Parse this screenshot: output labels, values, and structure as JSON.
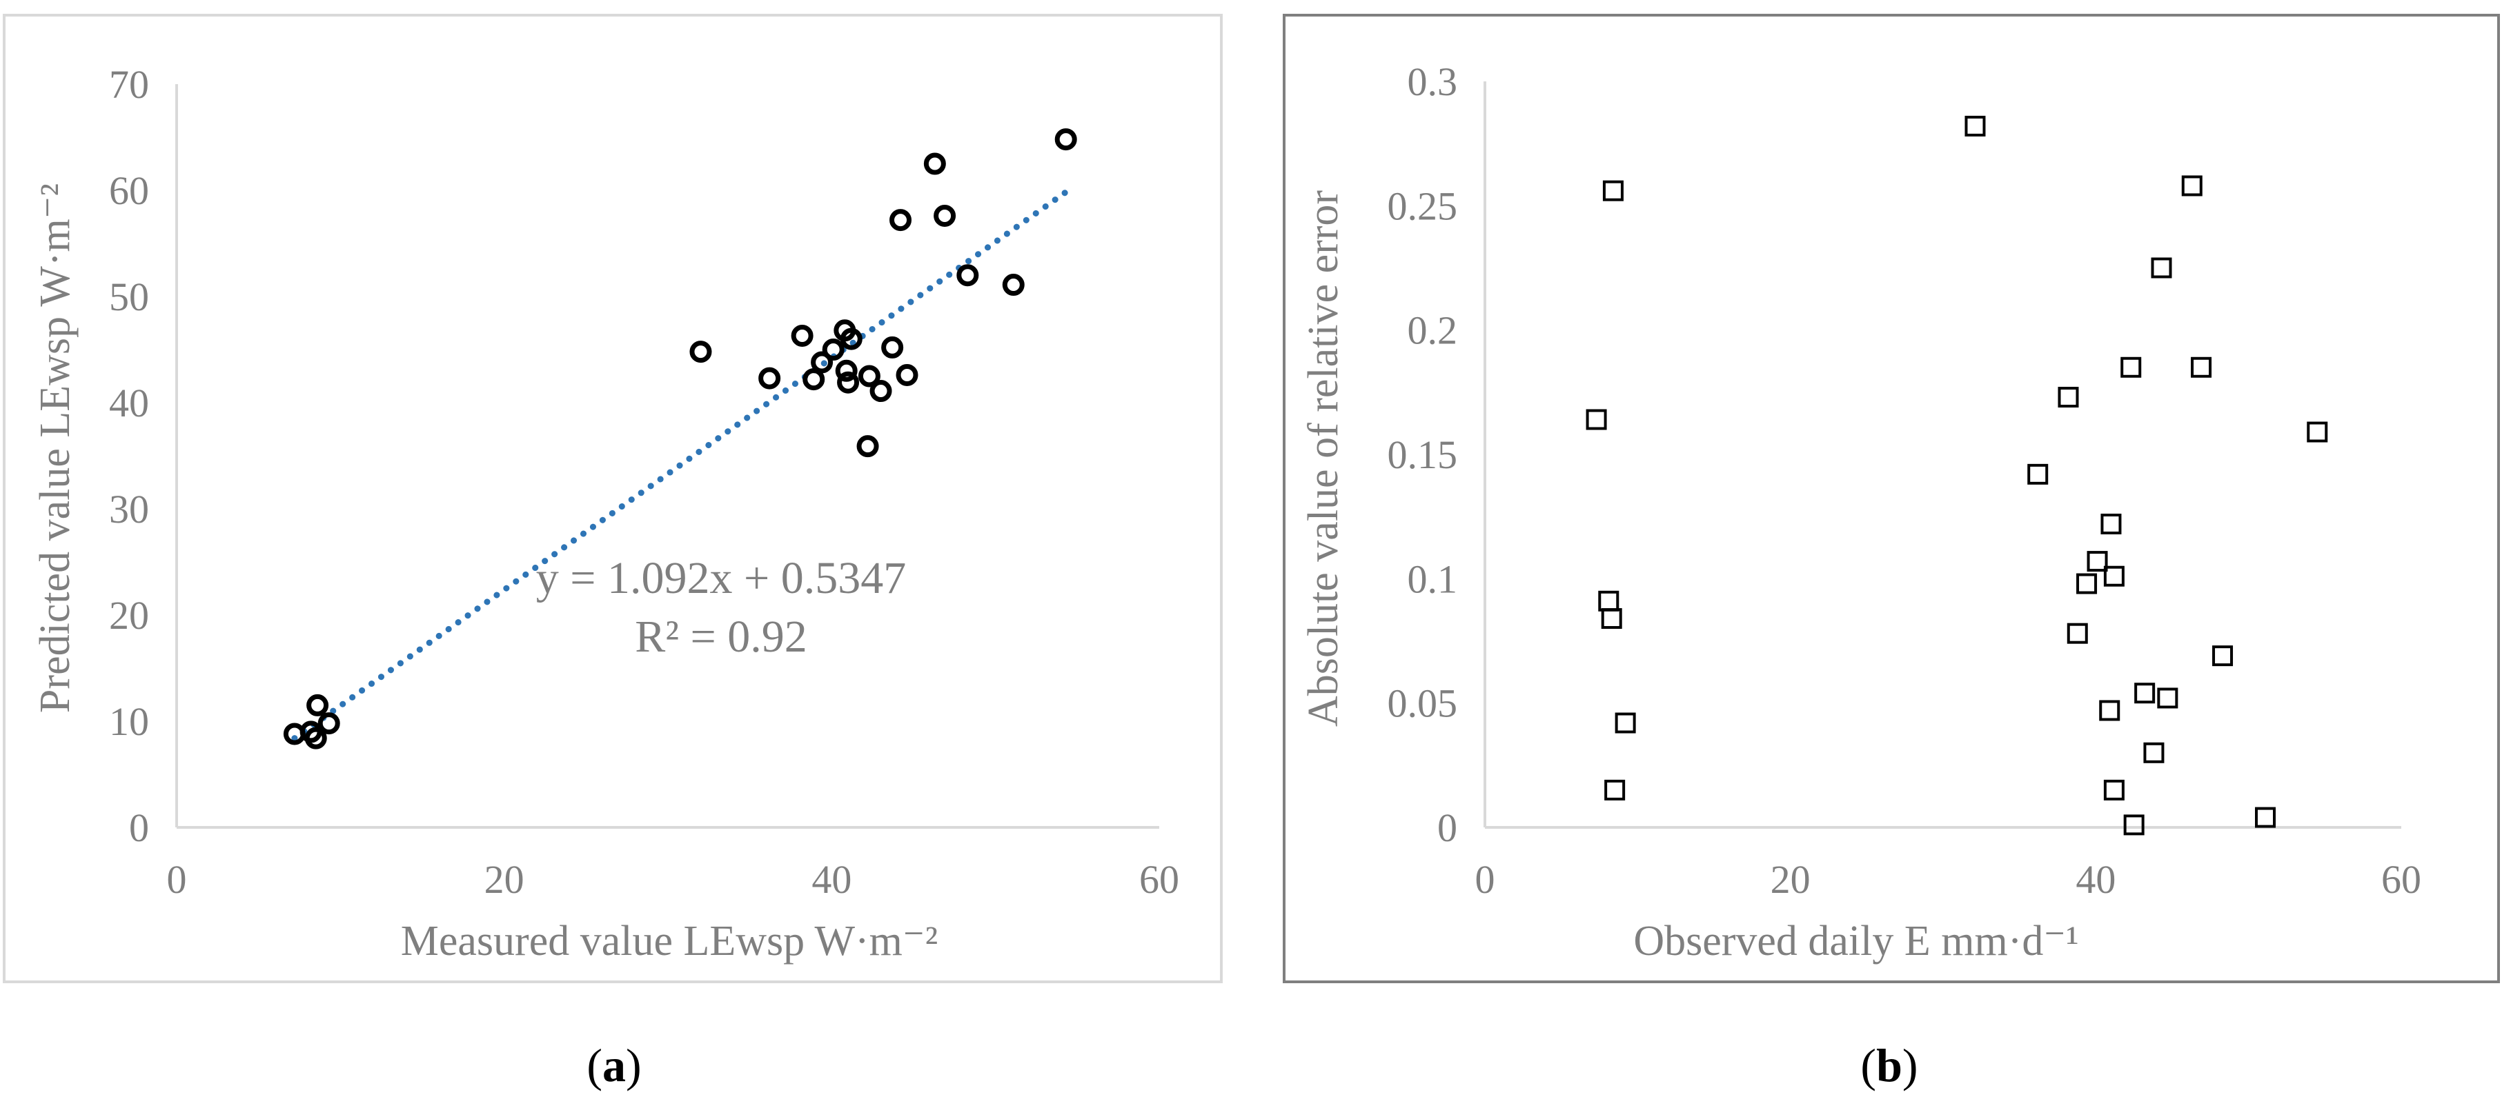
{
  "chart_data": [
    {
      "type": "scatter",
      "panel_label": "a",
      "xlabel": "Measured value LEwsp W·m⁻²",
      "ylabel": "Predicted value LEwsp W·m⁻²",
      "xlim": [
        0,
        60
      ],
      "ylim": [
        0,
        70
      ],
      "x_ticks": [
        0,
        20,
        40,
        60
      ],
      "y_ticks": [
        0,
        10,
        20,
        30,
        40,
        50,
        60,
        70
      ],
      "grid": false,
      "legend": "none",
      "marker": "circle",
      "marker_color": "#000000",
      "trendline": {
        "slope": 1.092,
        "intercept": 0.5347,
        "x_range": [
          7.2,
          54.5
        ],
        "style": "dotted",
        "color": "#2e75b6"
      },
      "equation_text": "y = 1.092x + 0.5347",
      "r2_text": "R² = 0.92",
      "points": [
        {
          "x": 7.2,
          "y": 8.8
        },
        {
          "x": 8.2,
          "y": 9.0
        },
        {
          "x": 8.5,
          "y": 8.4
        },
        {
          "x": 8.6,
          "y": 11.5
        },
        {
          "x": 9.3,
          "y": 9.8
        },
        {
          "x": 32.0,
          "y": 44.8
        },
        {
          "x": 36.2,
          "y": 42.3
        },
        {
          "x": 38.2,
          "y": 46.3
        },
        {
          "x": 38.9,
          "y": 42.2
        },
        {
          "x": 39.4,
          "y": 43.8
        },
        {
          "x": 40.1,
          "y": 45.0
        },
        {
          "x": 40.8,
          "y": 46.8
        },
        {
          "x": 40.9,
          "y": 43.0
        },
        {
          "x": 41.0,
          "y": 41.9
        },
        {
          "x": 41.2,
          "y": 46.0
        },
        {
          "x": 42.2,
          "y": 35.9
        },
        {
          "x": 42.3,
          "y": 42.5
        },
        {
          "x": 43.0,
          "y": 41.1
        },
        {
          "x": 43.7,
          "y": 45.2
        },
        {
          "x": 44.2,
          "y": 57.2
        },
        {
          "x": 44.6,
          "y": 42.6
        },
        {
          "x": 46.3,
          "y": 62.5
        },
        {
          "x": 46.9,
          "y": 57.6
        },
        {
          "x": 48.3,
          "y": 52.0
        },
        {
          "x": 51.1,
          "y": 51.1
        },
        {
          "x": 54.3,
          "y": 64.8
        }
      ]
    },
    {
      "type": "scatter",
      "panel_label": "b",
      "xlabel": "Observed daily E mm·d⁻¹",
      "ylabel": "Absolute value of relative error",
      "xlim": [
        0,
        60
      ],
      "ylim": [
        0,
        0.3
      ],
      "x_ticks": [
        0,
        20,
        40,
        60
      ],
      "y_ticks": [
        0,
        0.05,
        0.1,
        0.15,
        0.2,
        0.25,
        0.3
      ],
      "y_tick_labels": [
        "0",
        "0.05",
        "0.1",
        "0.15",
        "0.2",
        "0.25",
        "0.3"
      ],
      "grid": false,
      "legend": "none",
      "marker": "square",
      "marker_color": "#000000",
      "points": [
        {
          "x": 7.3,
          "y": 0.164
        },
        {
          "x": 8.1,
          "y": 0.091
        },
        {
          "x": 8.3,
          "y": 0.084
        },
        {
          "x": 8.4,
          "y": 0.256
        },
        {
          "x": 8.5,
          "y": 0.015
        },
        {
          "x": 9.2,
          "y": 0.042
        },
        {
          "x": 32.1,
          "y": 0.282
        },
        {
          "x": 36.2,
          "y": 0.142
        },
        {
          "x": 38.2,
          "y": 0.173
        },
        {
          "x": 38.8,
          "y": 0.078
        },
        {
          "x": 39.4,
          "y": 0.098
        },
        {
          "x": 40.1,
          "y": 0.107
        },
        {
          "x": 40.9,
          "y": 0.047
        },
        {
          "x": 41.0,
          "y": 0.122
        },
        {
          "x": 41.2,
          "y": 0.015
        },
        {
          "x": 41.2,
          "y": 0.101
        },
        {
          "x": 42.3,
          "y": 0.185
        },
        {
          "x": 42.5,
          "y": 0.001
        },
        {
          "x": 43.2,
          "y": 0.054
        },
        {
          "x": 43.8,
          "y": 0.03
        },
        {
          "x": 44.3,
          "y": 0.225
        },
        {
          "x": 44.7,
          "y": 0.052
        },
        {
          "x": 46.3,
          "y": 0.258
        },
        {
          "x": 46.9,
          "y": 0.185
        },
        {
          "x": 48.3,
          "y": 0.069
        },
        {
          "x": 51.1,
          "y": 0.004
        },
        {
          "x": 54.5,
          "y": 0.159
        }
      ]
    }
  ],
  "captions": {
    "a": "a",
    "b": "b"
  }
}
